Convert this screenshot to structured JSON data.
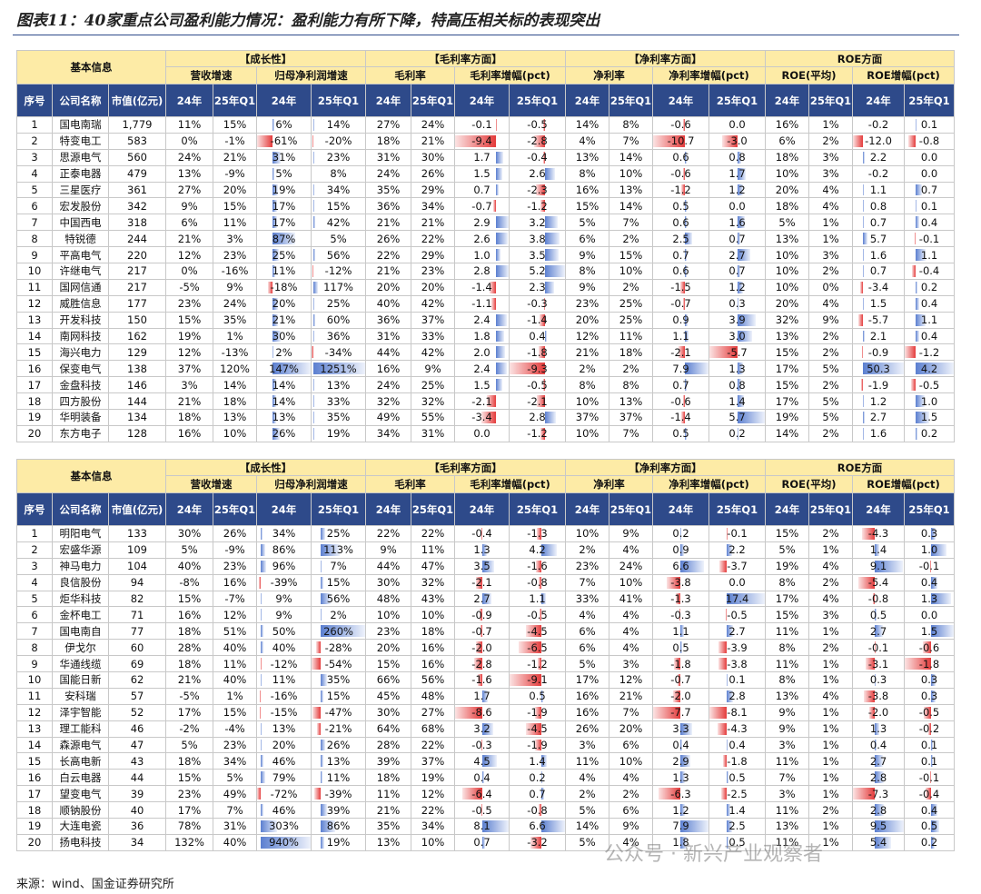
{
  "title": "图表11：40家重点公司盈利能力情况：盈利能力有所下降，特高压相关标的表现突出",
  "tables": [
    {
      "group_headers": [
        "基本信息",
        "【成长性】",
        "【毛利率方面】",
        "【净利率方面】",
        "ROE方面"
      ],
      "sub_headers": [
        "营收增速",
        "归母净利润增速",
        "毛利率",
        "毛利率增幅(pct)",
        "净利率",
        "净利率增幅(pct)",
        "ROE(平均)",
        "ROE增幅(pct)"
      ],
      "col_headers": [
        "序号",
        "公司名称",
        "市值(亿元)",
        "24年",
        "25年Q1",
        "24年",
        "25年Q1",
        "24年",
        "25年Q1",
        "24年",
        "25年Q1",
        "24年",
        "25年Q1",
        "24年",
        "25年Q1",
        "24年",
        "25年Q1",
        "24年",
        "25年Q1"
      ],
      "rows": [
        [
          "1",
          "国电南瑞",
          "1,779",
          "11%",
          "15%",
          "6%",
          "14%",
          "27%",
          "24%",
          "-0.1",
          "-0.5",
          "14%",
          "8%",
          "-0.6",
          "0.0",
          "16%",
          "1%",
          "-0.2",
          "0.1"
        ],
        [
          "2",
          "特变电工",
          "583",
          "0%",
          "-1%",
          "-61%",
          "-20%",
          "18%",
          "21%",
          "-9.4",
          "-2.8",
          "4%",
          "7%",
          "-10.7",
          "-3.0",
          "6%",
          "2%",
          "-12.0",
          "-0.8"
        ],
        [
          "3",
          "思源电气",
          "560",
          "24%",
          "21%",
          "31%",
          "23%",
          "31%",
          "30%",
          "1.7",
          "-0.4",
          "13%",
          "14%",
          "0.6",
          "0.8",
          "18%",
          "3%",
          "2.2",
          "0.0"
        ],
        [
          "4",
          "正泰电器",
          "479",
          "13%",
          "-9%",
          "5%",
          "8%",
          "24%",
          "26%",
          "1.5",
          "2.6",
          "8%",
          "10%",
          "-0.6",
          "1.7",
          "10%",
          "3%",
          "-0.2",
          "0.0"
        ],
        [
          "5",
          "三星医疗",
          "361",
          "27%",
          "20%",
          "19%",
          "34%",
          "35%",
          "29%",
          "0.7",
          "-2.3",
          "16%",
          "13%",
          "-1.2",
          "1.2",
          "20%",
          "4%",
          "1.1",
          "0.7"
        ],
        [
          "6",
          "宏发股份",
          "342",
          "9%",
          "15%",
          "17%",
          "15%",
          "36%",
          "34%",
          "-0.7",
          "-1.2",
          "15%",
          "14%",
          "0.5",
          "0.0",
          "18%",
          "4%",
          "0.8",
          "0.1"
        ],
        [
          "7",
          "中国西电",
          "318",
          "6%",
          "11%",
          "17%",
          "42%",
          "21%",
          "21%",
          "2.9",
          "3.2",
          "5%",
          "7%",
          "0.6",
          "1.6",
          "5%",
          "1%",
          "0.7",
          "0.4"
        ],
        [
          "8",
          "特锐德",
          "244",
          "21%",
          "3%",
          "87%",
          "5%",
          "26%",
          "22%",
          "2.6",
          "3.8",
          "6%",
          "2%",
          "2.5",
          "0.7",
          "13%",
          "1%",
          "5.7",
          "-0.1"
        ],
        [
          "9",
          "平高电气",
          "220",
          "12%",
          "23%",
          "25%",
          "56%",
          "22%",
          "29%",
          "1.0",
          "3.5",
          "9%",
          "15%",
          "0.7",
          "2.7",
          "10%",
          "3%",
          "1.6",
          "1.1"
        ],
        [
          "10",
          "许继电气",
          "217",
          "0%",
          "-16%",
          "11%",
          "-12%",
          "21%",
          "23%",
          "2.8",
          "5.2",
          "8%",
          "10%",
          "0.6",
          "0.7",
          "10%",
          "2%",
          "0.7",
          "-0.4"
        ],
        [
          "11",
          "国网信通",
          "217",
          "-5%",
          "9%",
          "-18%",
          "117%",
          "20%",
          "20%",
          "-1.4",
          "2.3",
          "9%",
          "2%",
          "-1.5",
          "1.2",
          "10%",
          "0%",
          "-3.4",
          "0.2"
        ],
        [
          "12",
          "威胜信息",
          "177",
          "23%",
          "24%",
          "20%",
          "25%",
          "40%",
          "42%",
          "-1.1",
          "-0.3",
          "23%",
          "25%",
          "-0.7",
          "0.3",
          "20%",
          "4%",
          "1.5",
          "0.4"
        ],
        [
          "13",
          "开发科技",
          "150",
          "15%",
          "35%",
          "21%",
          "60%",
          "36%",
          "37%",
          "2.4",
          "-1.4",
          "20%",
          "25%",
          "0.9",
          "3.9",
          "32%",
          "9%",
          "-5.7",
          "1.1"
        ],
        [
          "14",
          "南网科技",
          "162",
          "19%",
          "1%",
          "30%",
          "36%",
          "31%",
          "33%",
          "1.8",
          "0.4",
          "12%",
          "11%",
          "1.1",
          "3.0",
          "13%",
          "2%",
          "2.1",
          "0.4"
        ],
        [
          "15",
          "海兴电力",
          "129",
          "12%",
          "-13%",
          "2%",
          "-34%",
          "44%",
          "42%",
          "2.0",
          "-1.8",
          "21%",
          "18%",
          "-2.1",
          "-5.7",
          "15%",
          "2%",
          "-0.9",
          "-1.2"
        ],
        [
          "16",
          "保变电气",
          "138",
          "37%",
          "120%",
          "147%",
          "1251%",
          "16%",
          "9%",
          "2.4",
          "-9.3",
          "2%",
          "2%",
          "7.9",
          "1.3",
          "17%",
          "5%",
          "50.3",
          "4.2"
        ],
        [
          "17",
          "金盘科技",
          "146",
          "3%",
          "14%",
          "14%",
          "13%",
          "24%",
          "25%",
          "1.5",
          "-0.5",
          "8%",
          "8%",
          "0.7",
          "0.8",
          "15%",
          "2%",
          "-1.9",
          "-0.5"
        ],
        [
          "18",
          "四方股份",
          "144",
          "21%",
          "18%",
          "14%",
          "33%",
          "32%",
          "32%",
          "-2.1",
          "-2.1",
          "10%",
          "13%",
          "-0.6",
          "1.4",
          "17%",
          "5%",
          "1.2",
          "1.0"
        ],
        [
          "19",
          "华明装备",
          "134",
          "18%",
          "13%",
          "13%",
          "35%",
          "49%",
          "55%",
          "-3.4",
          "2.8",
          "37%",
          "37%",
          "-1.4",
          "5.7",
          "19%",
          "5%",
          "2.7",
          "1.5"
        ],
        [
          "20",
          "东方电子",
          "128",
          "16%",
          "10%",
          "26%",
          "19%",
          "34%",
          "31%",
          "0.0",
          "-1.2",
          "10%",
          "7%",
          "0.5",
          "0.2",
          "14%",
          "2%",
          "1.6",
          "0.2"
        ]
      ]
    },
    {
      "group_headers": [
        "基本信息",
        "【成长性】",
        "【毛利率方面】",
        "【净利率方面】",
        "ROE方面"
      ],
      "sub_headers": [
        "营收增速",
        "归母净利润增速",
        "毛利率",
        "毛利率增幅(pct)",
        "净利率",
        "净利率增幅(pct)",
        "ROE(平均)",
        "ROE增幅(pct)"
      ],
      "col_headers": [
        "序号",
        "公司名称",
        "市值(亿元)",
        "24年",
        "25年Q1",
        "24年",
        "25年Q1",
        "24年",
        "25年Q1",
        "24年",
        "25年Q1",
        "24年",
        "25年Q1",
        "24年",
        "25年Q1",
        "24年",
        "25年Q1",
        "24年",
        "25年Q1"
      ],
      "rows": [
        [
          "1",
          "明阳电气",
          "133",
          "30%",
          "26%",
          "34%",
          "25%",
          "22%",
          "22%",
          "-0.4",
          "-1.3",
          "10%",
          "9%",
          "0.2",
          "-0.1",
          "15%",
          "2%",
          "-4.3",
          "0.3"
        ],
        [
          "2",
          "宏盛华源",
          "109",
          "5%",
          "-9%",
          "86%",
          "113%",
          "9%",
          "11%",
          "1.3",
          "4.2",
          "2%",
          "4%",
          "0.9",
          "2.2",
          "5%",
          "1%",
          "1.4",
          "1.0"
        ],
        [
          "3",
          "神马电力",
          "104",
          "40%",
          "23%",
          "96%",
          "7%",
          "44%",
          "47%",
          "3.5",
          "-1.6",
          "23%",
          "24%",
          "6.6",
          "-3.7",
          "19%",
          "4%",
          "9.1",
          "-0.1"
        ],
        [
          "4",
          "良信股份",
          "94",
          "-8%",
          "16%",
          "-39%",
          "15%",
          "30%",
          "32%",
          "-2.1",
          "-0.8",
          "7%",
          "10%",
          "-3.8",
          "0.0",
          "8%",
          "2%",
          "-5.4",
          "0.4"
        ],
        [
          "5",
          "炬华科技",
          "82",
          "15%",
          "-7%",
          "9%",
          "56%",
          "48%",
          "43%",
          "2.7",
          "1.1",
          "33%",
          "41%",
          "-1.3",
          "17.4",
          "17%",
          "4%",
          "-0.8",
          "1.3"
        ],
        [
          "6",
          "金杯电工",
          "71",
          "16%",
          "12%",
          "9%",
          "2%",
          "10%",
          "10%",
          "-0.9",
          "-0.5",
          "4%",
          "4%",
          "-0.3",
          "-0.5",
          "15%",
          "3%",
          "0.5",
          "0.0"
        ],
        [
          "7",
          "国电南自",
          "77",
          "18%",
          "51%",
          "50%",
          "260%",
          "23%",
          "18%",
          "-0.7",
          "-4.5",
          "6%",
          "4%",
          "1.1",
          "2.7",
          "11%",
          "1%",
          "2.7",
          "1.5"
        ],
        [
          "8",
          "伊戈尔",
          "60",
          "28%",
          "40%",
          "40%",
          "-28%",
          "20%",
          "16%",
          "-2.0",
          "-6.5",
          "6%",
          "4%",
          "0.5",
          "-3.9",
          "8%",
          "2%",
          "-0.1",
          "-0.6"
        ],
        [
          "9",
          "华通线缆",
          "69",
          "18%",
          "11%",
          "-12%",
          "-54%",
          "15%",
          "16%",
          "-2.8",
          "-1.2",
          "5%",
          "3%",
          "-1.8",
          "-3.8",
          "11%",
          "1%",
          "-3.1",
          "-1.8"
        ],
        [
          "10",
          "国能日新",
          "62",
          "21%",
          "40%",
          "11%",
          "35%",
          "66%",
          "56%",
          "-1.6",
          "-9.1",
          "17%",
          "12%",
          "-0.7",
          "0.1",
          "8%",
          "1%",
          "0.3",
          "0.3"
        ],
        [
          "11",
          "安科瑞",
          "57",
          "-5%",
          "1%",
          "-16%",
          "15%",
          "45%",
          "48%",
          "1.7",
          "0.5",
          "16%",
          "21%",
          "-2.0",
          "2.8",
          "13%",
          "4%",
          "-3.8",
          "0.3"
        ],
        [
          "12",
          "泽宇智能",
          "52",
          "17%",
          "15%",
          "-15%",
          "-47%",
          "30%",
          "27%",
          "-8.6",
          "-1.9",
          "16%",
          "7%",
          "-7.7",
          "-8.1",
          "9%",
          "1%",
          "-2.0",
          "-0.5"
        ],
        [
          "13",
          "理工能科",
          "46",
          "-2%",
          "-4%",
          "13%",
          "-21%",
          "64%",
          "68%",
          "3.2",
          "-4.5",
          "26%",
          "20%",
          "3.3",
          "-4.3",
          "9%",
          "1%",
          "1.3",
          "-0.2"
        ],
        [
          "14",
          "森源电气",
          "47",
          "5%",
          "23%",
          "20%",
          "26%",
          "28%",
          "22%",
          "-0.3",
          "-1.9",
          "3%",
          "6%",
          "0.4",
          "0.4",
          "3%",
          "1%",
          "0.4",
          "0.1"
        ],
        [
          "15",
          "长高电新",
          "43",
          "18%",
          "34%",
          "46%",
          "13%",
          "39%",
          "37%",
          "4.5",
          "1.4",
          "11%",
          "10%",
          "2.9",
          "-1.8",
          "11%",
          "1%",
          "2.7",
          "0.1"
        ],
        [
          "16",
          "白云电器",
          "44",
          "15%",
          "5%",
          "79%",
          "11%",
          "18%",
          "19%",
          "0.4",
          "0.2",
          "4%",
          "4%",
          "1.3",
          "0.5",
          "7%",
          "1%",
          "2.8",
          "-0.1"
        ],
        [
          "17",
          "望变电气",
          "39",
          "23%",
          "49%",
          "-72%",
          "-39%",
          "11%",
          "12%",
          "-6.4",
          "0.7",
          "2%",
          "2%",
          "-6.3",
          "-2.5",
          "3%",
          "1%",
          "-7.3",
          "-0.4"
        ],
        [
          "18",
          "顺钠股份",
          "40",
          "17%",
          "7%",
          "46%",
          "39%",
          "21%",
          "22%",
          "-0.5",
          "-0.8",
          "5%",
          "6%",
          "1.2",
          "1.4",
          "11%",
          "2%",
          "2.8",
          "0.4"
        ],
        [
          "19",
          "大连电瓷",
          "36",
          "78%",
          "31%",
          "303%",
          "86%",
          "35%",
          "34%",
          "8.1",
          "6.6",
          "14%",
          "9%",
          "7.9",
          "2.5",
          "13%",
          "1%",
          "9.5",
          "0.5"
        ],
        [
          "20",
          "扬电科技",
          "34",
          "132%",
          "40%",
          "940%",
          "19%",
          "13%",
          "10%",
          "0.7",
          "-3.2",
          "5%",
          "4%",
          "1.8",
          "0.5",
          "11%",
          "1%",
          "5.4",
          "0.2"
        ]
      ]
    }
  ],
  "watermark": "公众号 · 新兴产业观察者",
  "source": "来源：wind、国金证券研究所"
}
